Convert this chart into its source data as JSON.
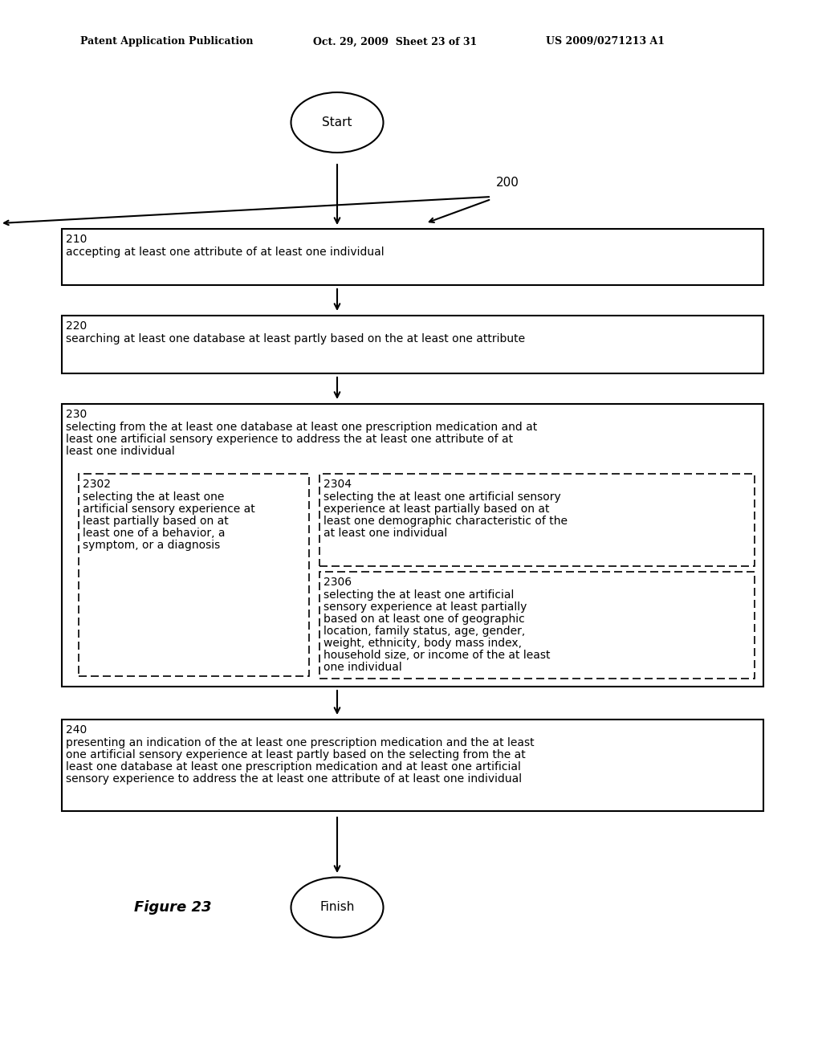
{
  "bg_color": "#ffffff",
  "header_text1": "Patent Application Publication",
  "header_text2": "Oct. 29, 2009  Sheet 23 of 31",
  "header_text3": "US 2009/0271213 A1",
  "figure_label": "Figure 23",
  "ref_number": "200",
  "start_label": "Start",
  "finish_label": "Finish",
  "box210_id": "210",
  "box210_text": "accepting at least one attribute of at least one individual",
  "box220_id": "220",
  "box220_text": "searching at least one database at least partly based on the at least one attribute",
  "box230_id": "230",
  "box230_line1": "selecting from the at least one database at least one prescription medication and at",
  "box230_line2": "least one artificial sensory experience to address the at least one attribute of at",
  "box230_line3": "least one individual",
  "box2302_id": "2302",
  "box2302_line1": "selecting the at least one",
  "box2302_line2": "artificial sensory experience at",
  "box2302_line3": "least partially based on at",
  "box2302_line4": "least one of a behavior, a",
  "box2302_line5": "symptom, or a diagnosis",
  "box2304_id": "2304",
  "box2304_line1": "selecting the at least one artificial sensory",
  "box2304_line2": "experience at least partially based on at",
  "box2304_line3": "least one demographic characteristic of the",
  "box2304_line4": "at least one individual",
  "box2306_id": "2306",
  "box2306_line1": "selecting the at least one artificial",
  "box2306_line2": "sensory experience at least partially",
  "box2306_line3": "based on at least one of geographic",
  "box2306_line4": "location, family status, age, gender,",
  "box2306_line5": "weight, ethnicity, body mass index,",
  "box2306_line6": "household size, or income of the at least",
  "box2306_line7": "one individual",
  "box240_id": "240",
  "box240_line1": "presenting an indication of the at least one prescription medication and the at least",
  "box240_line2": "one artificial sensory experience at least partly based on the selecting from the at",
  "box240_line3": "least one database at least one prescription medication and at least one artificial",
  "box240_line4": "sensory experience to address the at least one attribute of at least one individual"
}
